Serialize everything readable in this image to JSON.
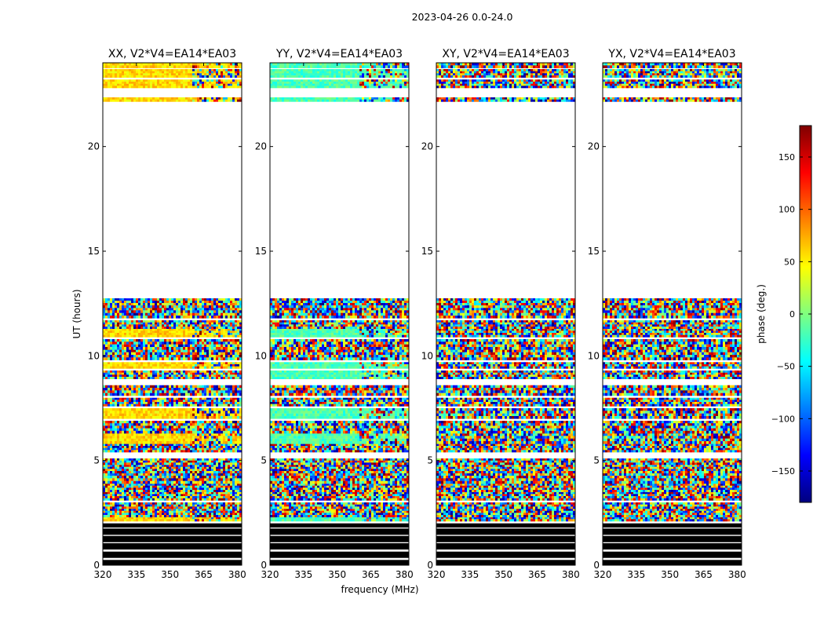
{
  "figure": {
    "suptitle": "2023-04-26 0.0-24.0",
    "xlabel": "frequency (MHz)",
    "ylabel": "UT (hours)"
  },
  "colorbar": {
    "label": "phase (deg.)",
    "range": [
      -180,
      180
    ],
    "ticks": [
      -150,
      -100,
      -50,
      0,
      50,
      100,
      150
    ],
    "tick_labels": [
      "−150",
      "−100",
      "−50",
      "0",
      "50",
      "100",
      "150"
    ],
    "colormap": "jet",
    "stops": [
      "#00007f",
      "#0000ff",
      "#007fff",
      "#00ffff",
      "#7fff7f",
      "#ffff00",
      "#ff7f00",
      "#ff0000",
      "#7f0000"
    ]
  },
  "chart_data": [
    {
      "type": "heatmap",
      "title": "XX, V2*V4=EA14*EA03",
      "xlim": [
        320,
        382
      ],
      "ylim": [
        0,
        24
      ],
      "xticks": [
        320,
        335,
        350,
        365,
        380
      ],
      "yticks": [
        0,
        5,
        10,
        15,
        20
      ],
      "value_range": [
        -180,
        180
      ],
      "phase_behaviour": "coherent band near +60 deg above 22.3 h and in several rows between 5 and 12 h; noisy elsewhere"
    },
    {
      "type": "heatmap",
      "title": "YY, V2*V4=EA14*EA03",
      "xlim": [
        320,
        382
      ],
      "ylim": [
        0,
        24
      ],
      "xticks": [
        320,
        335,
        350,
        365,
        380
      ],
      "yticks": [
        0,
        5,
        10,
        15,
        20
      ],
      "value_range": [
        -180,
        180
      ],
      "phase_behaviour": "coherent band near -20 deg above 22.3 h and in several rows between 5 and 12 h; noisy elsewhere"
    },
    {
      "type": "heatmap",
      "title": "XY, V2*V4=EA14*EA03",
      "xlim": [
        320,
        382
      ],
      "ylim": [
        0,
        24
      ],
      "xticks": [
        320,
        335,
        350,
        365,
        380
      ],
      "yticks": [
        0,
        5,
        10,
        15,
        20
      ],
      "value_range": [
        -180,
        180
      ],
      "phase_behaviour": "random phase (noise) in all data rows"
    },
    {
      "type": "heatmap",
      "title": "YX, V2*V4=EA14*EA03",
      "xlim": [
        320,
        382
      ],
      "ylim": [
        0,
        24
      ],
      "xticks": [
        320,
        335,
        350,
        365,
        380
      ],
      "yticks": [
        0,
        5,
        10,
        15,
        20
      ],
      "value_range": [
        -180,
        180
      ],
      "phase_behaviour": "random phase (noise) in all data rows"
    }
  ],
  "time_coverage": {
    "data_bands_hours": [
      [
        2.1,
        2.3
      ],
      [
        2.3,
        2.7
      ],
      [
        2.7,
        3.0
      ],
      [
        3.1,
        3.5
      ],
      [
        3.5,
        3.9
      ],
      [
        3.9,
        4.4
      ],
      [
        4.4,
        4.8
      ],
      [
        4.8,
        5.1
      ],
      [
        5.4,
        5.8
      ],
      [
        5.8,
        6.3
      ],
      [
        6.3,
        6.9
      ],
      [
        7.0,
        7.5
      ],
      [
        7.6,
        8.0
      ],
      [
        8.1,
        8.6
      ],
      [
        8.9,
        9.3
      ],
      [
        9.4,
        9.7
      ],
      [
        9.8,
        10.3
      ],
      [
        10.3,
        10.8
      ],
      [
        10.9,
        11.3
      ],
      [
        11.3,
        11.7
      ],
      [
        11.8,
        12.3
      ],
      [
        12.3,
        12.75
      ],
      [
        22.15,
        22.35
      ],
      [
        22.8,
        23.2
      ],
      [
        23.3,
        23.7
      ],
      [
        23.75,
        24.0
      ]
    ],
    "black_bands_hours": [
      [
        0.0,
        0.25
      ],
      [
        0.35,
        0.65
      ],
      [
        0.75,
        1.05
      ],
      [
        1.1,
        1.4
      ],
      [
        1.45,
        1.75
      ],
      [
        1.8,
        2.0
      ]
    ]
  }
}
